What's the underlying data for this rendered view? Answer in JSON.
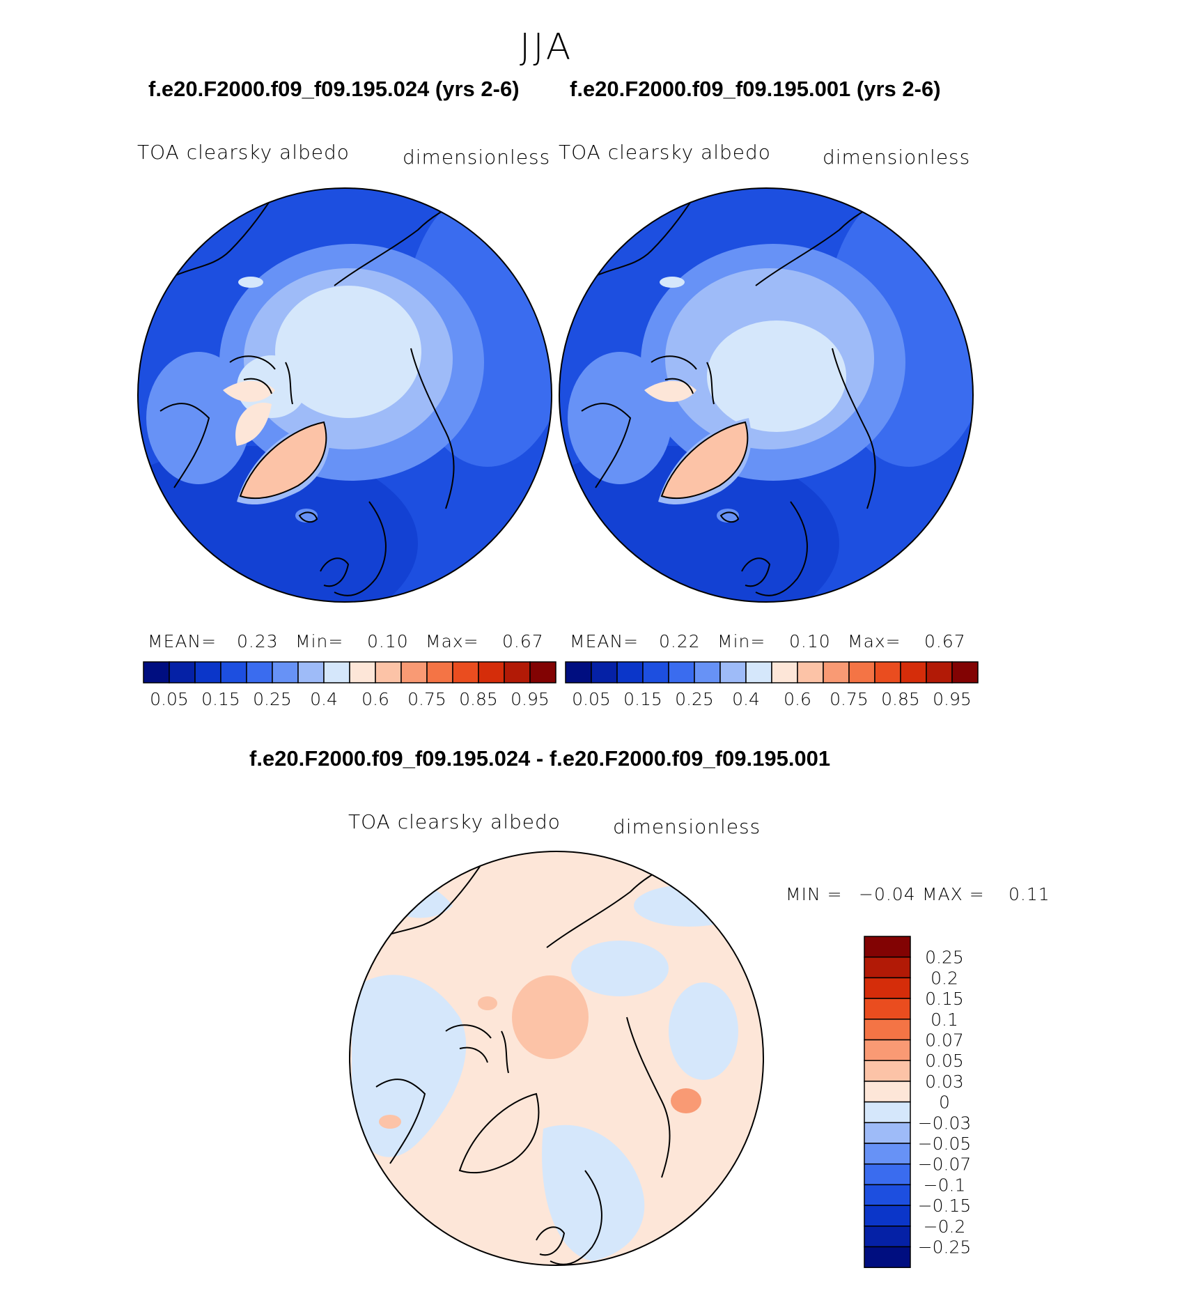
{
  "season": "JJA",
  "panels": [
    {
      "case_title": "f.e20.F2000.f09_f09.195.024 (yrs 2-6)",
      "var_label": "TOA clearsky albedo",
      "units_label": "dimensionless",
      "mean_label": "MEAN=",
      "mean_value": "0.23",
      "min_label": "Min=",
      "min_value": "0.10",
      "max_label": "Max=",
      "max_value": "0.67"
    },
    {
      "case_title": "f.e20.F2000.f09_f09.195.001 (yrs 2-6)",
      "var_label": "TOA clearsky albedo",
      "units_label": "dimensionless",
      "mean_label": "MEAN=",
      "mean_value": "0.22",
      "min_label": "Min=",
      "min_value": "0.10",
      "max_label": "Max=",
      "max_value": "0.67"
    }
  ],
  "colorbar_top": {
    "colors": [
      "#000e80",
      "#0521a6",
      "#0b36c9",
      "#1d4fe0",
      "#3a6cef",
      "#6792f6",
      "#9ebbf8",
      "#d5e7fb",
      "#fde6d8",
      "#fcc3a7",
      "#f99a74",
      "#f47445",
      "#ea4d1f",
      "#d52d0a",
      "#b21a06",
      "#820303"
    ],
    "labels": [
      "0.05",
      "0.15",
      "0.25",
      "0.4",
      "0.6",
      "0.75",
      "0.85",
      "0.95"
    ]
  },
  "diff": {
    "title": "f.e20.F2000.f09_f09.195.024 - f.e20.F2000.f09_f09.195.001",
    "var_label": "TOA clearsky albedo",
    "units_label": "dimensionless",
    "min_label": "MIN =",
    "min_value": "−0.04",
    "max_label": "MAX =",
    "max_value": "0.11"
  },
  "colorbar_diff": {
    "colors": [
      "#820303",
      "#b21a06",
      "#d52d0a",
      "#ea4d1f",
      "#f47445",
      "#f99a74",
      "#fcc3a7",
      "#fde6d8",
      "#d5e7fb",
      "#9ebbf8",
      "#6792f6",
      "#3a6cef",
      "#1d4fe0",
      "#0b36c9",
      "#0521a6",
      "#000e80"
    ],
    "labels": [
      "0.25",
      "0.2",
      "0.15",
      "0.1",
      "0.07",
      "0.05",
      "0.03",
      "0",
      "−0.03",
      "−0.05",
      "−0.07",
      "−0.1",
      "−0.15",
      "−0.2",
      "−0.25"
    ]
  }
}
